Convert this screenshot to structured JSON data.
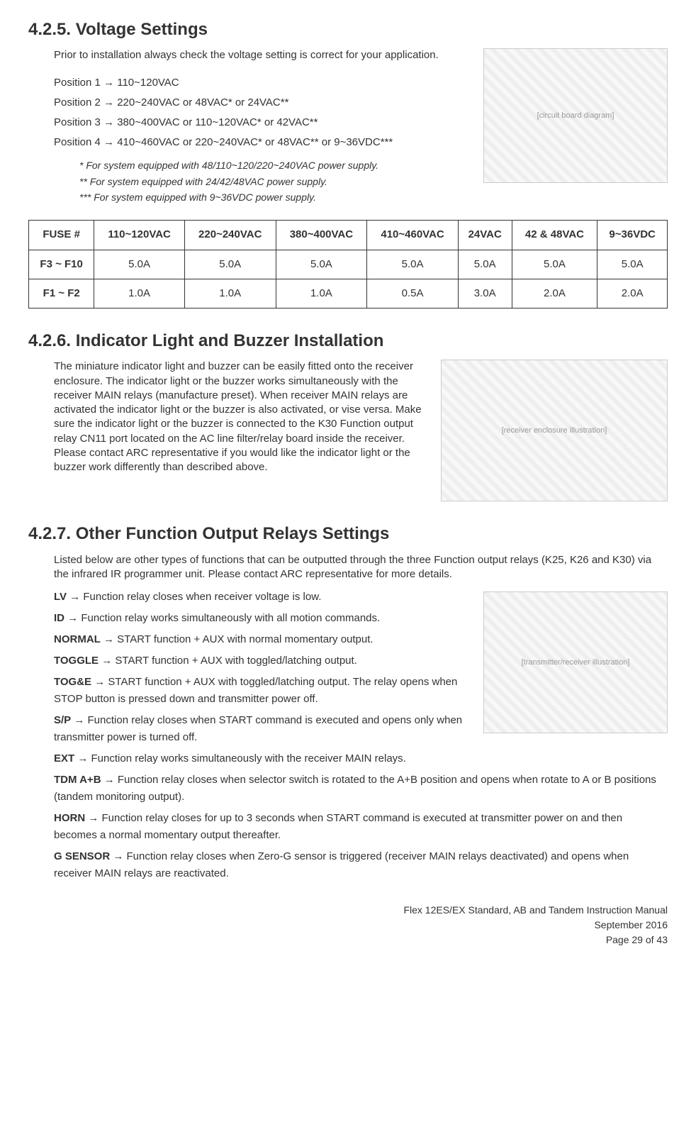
{
  "s425": {
    "heading": "4.2.5. Voltage Settings",
    "intro": "Prior to installation always check the voltage setting is correct for your application.",
    "positions": [
      "Position 1  →  110~120VAC",
      "Position 2  →  220~240VAC or 48VAC* or 24VAC**",
      "Position 3  →  380~400VAC or 110~120VAC* or 42VAC**",
      "Position 4  →  410~460VAC or 220~240VAC* or 48VAC** or 9~36VDC***"
    ],
    "footnotes": [
      "* For system equipped with 48/110~120/220~240VAC power supply.",
      "** For system equipped with 24/42/48VAC power supply.",
      "*** For system equipped with 9~36VDC power supply."
    ],
    "circuit_placeholder": "[circuit board diagram]"
  },
  "fuse_table": {
    "columns": [
      "FUSE #",
      "110~120VAC",
      "220~240VAC",
      "380~400VAC",
      "410~460VAC",
      "24VAC",
      "42 & 48VAC",
      "9~36VDC"
    ],
    "rows": [
      [
        "F3 ~ F10",
        "5.0A",
        "5.0A",
        "5.0A",
        "5.0A",
        "5.0A",
        "5.0A",
        "5.0A"
      ],
      [
        "F1 ~ F2",
        "1.0A",
        "1.0A",
        "1.0A",
        "0.5A",
        "3.0A",
        "2.0A",
        "2.0A"
      ]
    ]
  },
  "s426": {
    "heading": "4.2.6. Indicator Light and Buzzer Installation",
    "body": "The miniature indicator light and buzzer can be easily fitted onto the receiver enclosure.  The indicator light or the buzzer works simultaneously with the receiver MAIN relays (manufacture preset).  When receiver MAIN relays are activated the indicator light or the buzzer is also activated, or vise versa.  Make sure the indicator light or the buzzer is connected to the K30 Function output relay CN11 port located on the AC line filter/relay board inside the receiver.  Please contact ARC representative if you would like the indicator light or the buzzer work differently than described above.",
    "receiver_placeholder": "[receiver enclosure illustration]"
  },
  "s427": {
    "heading": "4.2.7. Other Function Output Relays Settings",
    "intro": "Listed below are other types of functions that can be outputted through the three Function output relays (K25, K26 and K30) via the infrared IR programmer unit.  Please contact ARC representative for more details.",
    "relay_placeholder": "[transmitter/receiver illustration]",
    "items": [
      {
        "label": "LV",
        "desc": " → Function relay closes when receiver voltage is low."
      },
      {
        "label": "ID",
        "desc": " → Function relay works simultaneously with all motion commands."
      },
      {
        "label": "NORMAL",
        "desc": " → START function + AUX with normal momentary output."
      },
      {
        "label": "TOGGLE",
        "desc": " → START function + AUX with toggled/latching output."
      },
      {
        "label": "TOG&E",
        "desc": " → START function + AUX with toggled/latching output.  The relay opens when STOP button is pressed down and transmitter power off."
      },
      {
        "label": "S/P",
        "desc": " → Function relay closes when START command is executed and opens only when transmitter power is turned off."
      },
      {
        "label": "EXT",
        "desc": " → Function relay works simultaneously with the receiver MAIN relays."
      },
      {
        "label": "TDM A+B",
        "desc": " → Function relay closes when selector switch is rotated to the A+B position and opens when rotate to A or B positions (tandem monitoring output)."
      },
      {
        "label": "HORN",
        "desc": " → Function relay closes for up to 3 seconds when START command is executed at transmitter power on and then becomes a normal momentary output thereafter."
      },
      {
        "label": "G SENSOR",
        "desc": " → Function relay closes when Zero-G sensor is triggered (receiver MAIN relays deactivated) and opens when receiver MAIN relays are reactivated."
      }
    ]
  },
  "footer": {
    "line1": "Flex 12ES/EX Standard, AB and Tandem Instruction Manual",
    "line2": "September 2016",
    "line3": "Page 29 of 43"
  }
}
